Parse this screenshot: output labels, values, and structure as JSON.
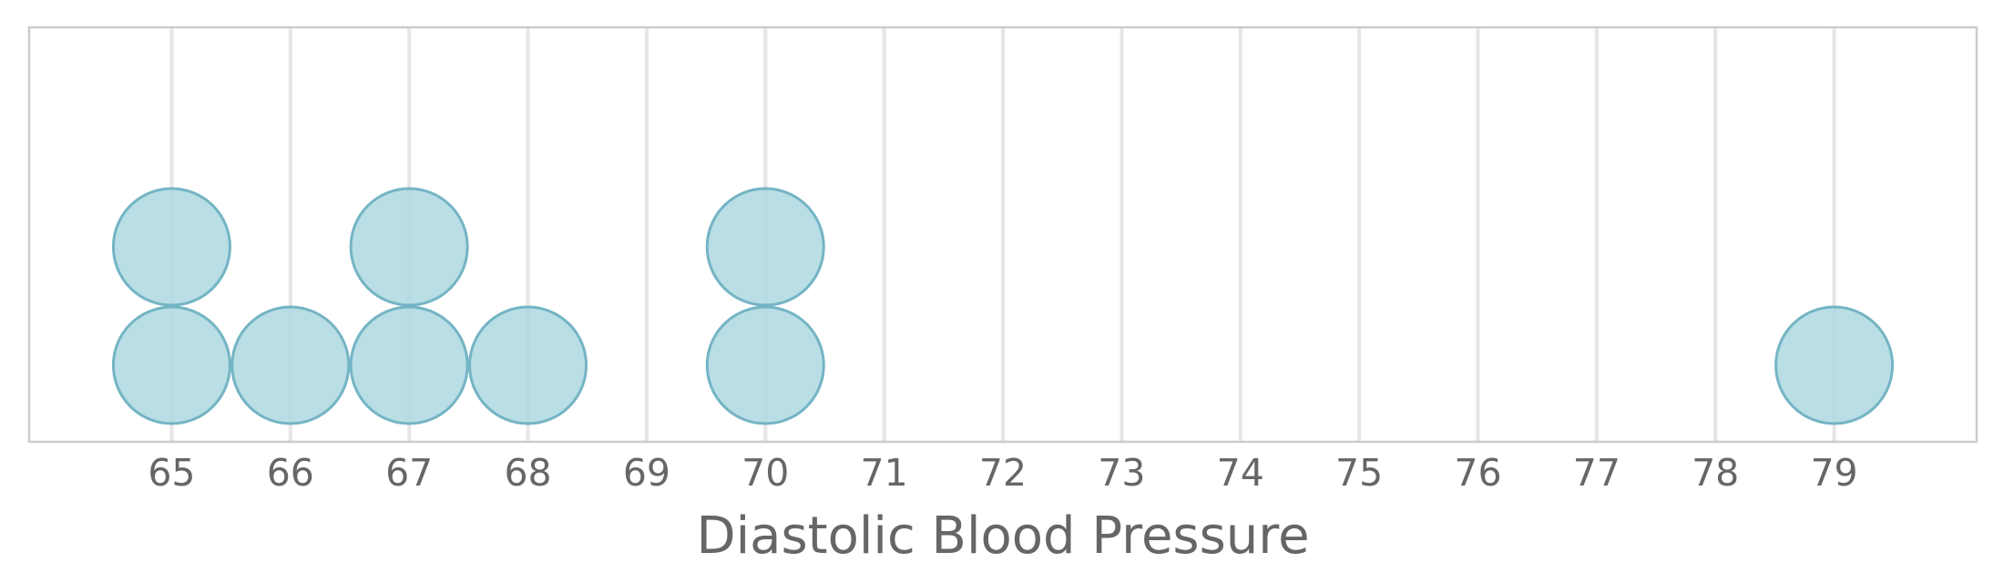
{
  "chart_data": {
    "type": "scatter",
    "subtype": "dot-plot",
    "title": "",
    "xlabel": "Diastolic Blood Pressure",
    "ylabel": "",
    "xlim": [
      63.8,
      80.2
    ],
    "xticks": [
      65,
      66,
      67,
      68,
      69,
      70,
      71,
      72,
      73,
      74,
      75,
      76,
      77,
      78,
      79
    ],
    "x_tick_labels": [
      "65",
      "66",
      "67",
      "68",
      "69",
      "70",
      "71",
      "72",
      "73",
      "74",
      "75",
      "76",
      "77",
      "78",
      "79"
    ],
    "values": [
      65,
      65,
      66,
      67,
      67,
      68,
      70,
      70,
      79
    ],
    "stacked_counts": [
      {
        "x": 65,
        "count": 2
      },
      {
        "x": 66,
        "count": 1
      },
      {
        "x": 67,
        "count": 2
      },
      {
        "x": 68,
        "count": 1
      },
      {
        "x": 70,
        "count": 2
      },
      {
        "x": 79,
        "count": 1
      }
    ],
    "grid": "vertical",
    "colors": {
      "dot_fill": "#add8e0",
      "dot_stroke": "#74b4c4",
      "grid": "#e6e6e6",
      "frame": "#cccccc",
      "text": "#666666"
    }
  }
}
